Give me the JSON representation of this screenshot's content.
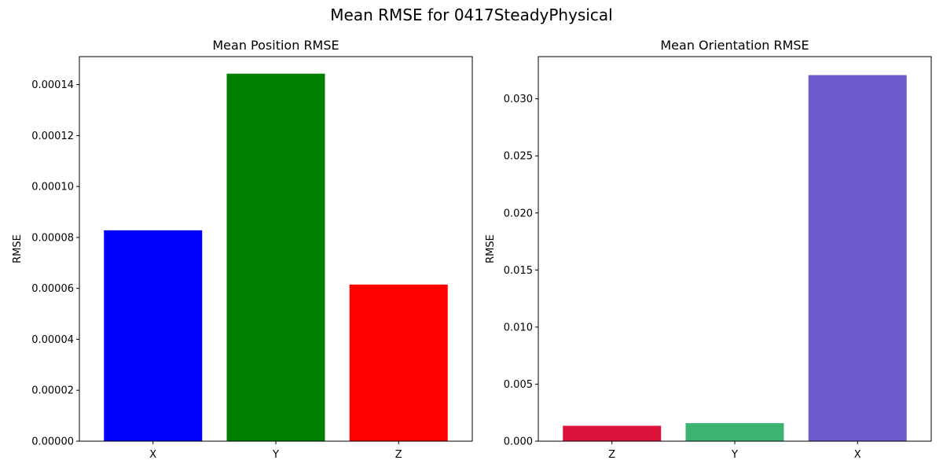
{
  "figure": {
    "suptitle": "Mean RMSE for 0417SteadyPhysical"
  },
  "chart_data": [
    {
      "type": "bar",
      "title": "Mean Position RMSE",
      "xlabel": "",
      "ylabel": "RMSE",
      "categories": [
        "X",
        "Y",
        "Z"
      ],
      "values": [
        8.28e-05,
        0.0001443,
        6.15e-05
      ],
      "colors": [
        "#0000ff",
        "#008000",
        "#ff0000"
      ],
      "ylim": [
        0,
        0.000151
      ],
      "yticks": [
        0,
        2e-05,
        4e-05,
        6e-05,
        8e-05,
        0.0001,
        0.00012,
        0.00014
      ],
      "ytick_labels": [
        "0.00000",
        "0.00002",
        "0.00004",
        "0.00006",
        "0.00008",
        "0.00010",
        "0.00012",
        "0.00014"
      ],
      "grid": false,
      "legend": "none"
    },
    {
      "type": "bar",
      "title": "Mean Orientation RMSE",
      "xlabel": "",
      "ylabel": "RMSE",
      "categories": [
        "Z",
        "Y",
        "X"
      ],
      "values": [
        0.00135,
        0.00158,
        0.03208
      ],
      "colors": [
        "#dc143c",
        "#3cb371",
        "#6a5acd"
      ],
      "ylim": [
        0,
        0.0337
      ],
      "yticks": [
        0,
        0.005,
        0.01,
        0.015,
        0.02,
        0.025,
        0.03
      ],
      "ytick_labels": [
        "0.000",
        "0.005",
        "0.010",
        "0.015",
        "0.020",
        "0.025",
        "0.030"
      ],
      "grid": false,
      "legend": "none"
    }
  ]
}
